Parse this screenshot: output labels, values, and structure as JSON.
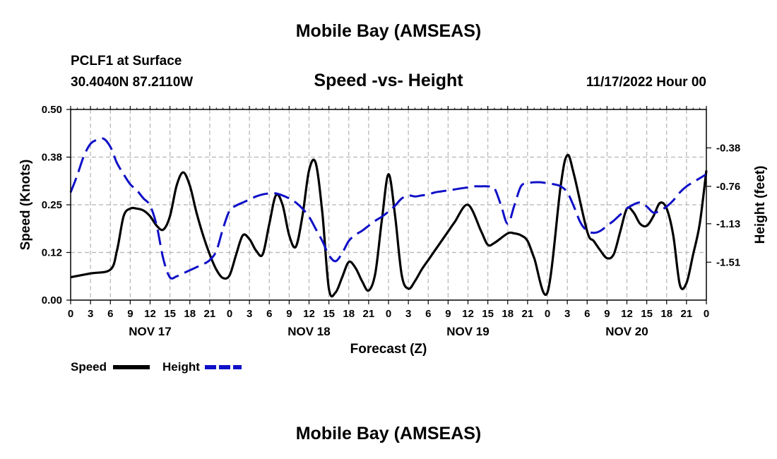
{
  "page": {
    "title": "Mobile Bay (AMSEAS)",
    "station": "PCLF1 at Surface",
    "coords": "30.4040N  87.2110W",
    "chart_title": "Speed -vs- Height",
    "run_time": "11/17/2022 Hour 00",
    "footer_title": "Mobile Bay (AMSEAS)"
  },
  "colors": {
    "speed": "#000000",
    "height": "#1010c8",
    "grid": "#b4b4b4"
  },
  "chart_data": {
    "type": "line",
    "title": "Speed -vs- Height",
    "xlabel": "Forecast (Z)",
    "ylabel": "Speed (Knots)",
    "y2label": "Height (feet)",
    "x_unit": "forecast hour",
    "xlim": [
      0,
      96
    ],
    "x_tick_step": 3,
    "x_tick_labels": [
      "0",
      "3",
      "6",
      "9",
      "12",
      "15",
      "18",
      "21",
      "0",
      "3",
      "6",
      "9",
      "12",
      "15",
      "18",
      "21",
      "0",
      "3",
      "6",
      "9",
      "12",
      "15",
      "18",
      "21",
      "0",
      "3",
      "6",
      "9",
      "12",
      "15",
      "18",
      "21",
      "0"
    ],
    "day_labels": [
      {
        "hour": 12,
        "label": "NOV 17"
      },
      {
        "hour": 36,
        "label": "NOV 18"
      },
      {
        "hour": 60,
        "label": "NOV 19"
      },
      {
        "hour": 84,
        "label": "NOV 20"
      }
    ],
    "ylim": [
      0,
      0.5
    ],
    "y_ticks": [
      0,
      0.125,
      0.25,
      0.375,
      0.5
    ],
    "y_tick_labels": [
      "0.00",
      "0.12",
      "0.25",
      "0.38",
      "0.50"
    ],
    "y2lim": [
      -1.885,
      0.0
    ],
    "y2_ticks": [
      -1.51,
      -1.13,
      -0.76,
      -0.38
    ],
    "y2_tick_labels": [
      "-1.51",
      "-1.13",
      "-0.76",
      "-0.38"
    ],
    "grid": true,
    "legend": {
      "placement": "below-left",
      "entries": [
        "Speed",
        "Height"
      ]
    },
    "series": [
      {
        "name": "Speed",
        "axis": "left",
        "style": "solid",
        "x": [
          0,
          3,
          6,
          7,
          8,
          9,
          10,
          11,
          12,
          13,
          14,
          15,
          16,
          17,
          18,
          19,
          20,
          21,
          22,
          23,
          24,
          25,
          26,
          27,
          28,
          29,
          30,
          31,
          32,
          33,
          34,
          35,
          36,
          37,
          38,
          39,
          40,
          41,
          42,
          43,
          44,
          45,
          46,
          47,
          48,
          49,
          50,
          51,
          52,
          53,
          54,
          55,
          56,
          57,
          58,
          60,
          62,
          63,
          64,
          66,
          67,
          68,
          69,
          70,
          72,
          74,
          75,
          76,
          78,
          79,
          80,
          81,
          82,
          83,
          84,
          85,
          86,
          87,
          88,
          89,
          90,
          91,
          92,
          93,
          94,
          95,
          96
        ],
        "values": [
          0.06,
          0.07,
          0.08,
          0.13,
          0.22,
          0.24,
          0.24,
          0.235,
          0.22,
          0.195,
          0.185,
          0.22,
          0.3,
          0.335,
          0.3,
          0.23,
          0.17,
          0.12,
          0.08,
          0.058,
          0.065,
          0.12,
          0.17,
          0.16,
          0.13,
          0.12,
          0.2,
          0.275,
          0.25,
          0.17,
          0.14,
          0.22,
          0.34,
          0.36,
          0.23,
          0.03,
          0.02,
          0.06,
          0.1,
          0.085,
          0.05,
          0.025,
          0.07,
          0.21,
          0.33,
          0.22,
          0.065,
          0.03,
          0.05,
          0.08,
          0.105,
          0.13,
          0.155,
          0.18,
          0.205,
          0.25,
          0.18,
          0.145,
          0.15,
          0.175,
          0.175,
          0.17,
          0.155,
          0.11,
          0.02,
          0.3,
          0.38,
          0.33,
          0.18,
          0.155,
          0.13,
          0.11,
          0.12,
          0.18,
          0.24,
          0.23,
          0.2,
          0.195,
          0.22,
          0.255,
          0.24,
          0.17,
          0.04,
          0.045,
          0.12,
          0.2,
          0.34
        ]
      },
      {
        "name": "Height",
        "axis": "right",
        "style": "dashed",
        "x": [
          0,
          1,
          2,
          3,
          4,
          5,
          6,
          7,
          8,
          9,
          10,
          11,
          12,
          13,
          14,
          15,
          16,
          17,
          18,
          19,
          20,
          21,
          22,
          23,
          24,
          25,
          26,
          27,
          28,
          29,
          30,
          31,
          32,
          33,
          34,
          35,
          36,
          37,
          38,
          39,
          40,
          41,
          42,
          43,
          44,
          45,
          46,
          47,
          48,
          49,
          50,
          51,
          52,
          53,
          54,
          55,
          56,
          57,
          58,
          59,
          60,
          61,
          62,
          63,
          64,
          65,
          66,
          67,
          68,
          69,
          70,
          71,
          72,
          73,
          74,
          75,
          76,
          77,
          78,
          79,
          80,
          81,
          82,
          83,
          84,
          85,
          86,
          87,
          88,
          89,
          90,
          91,
          92,
          93,
          94,
          95,
          96
        ],
        "values": [
          -0.82,
          -0.65,
          -0.46,
          -0.34,
          -0.3,
          -0.29,
          -0.37,
          -0.53,
          -0.64,
          -0.74,
          -0.8,
          -0.88,
          -0.95,
          -1.15,
          -1.48,
          -1.66,
          -1.65,
          -1.62,
          -1.59,
          -1.56,
          -1.53,
          -1.49,
          -1.4,
          -1.18,
          -1.0,
          -0.95,
          -0.92,
          -0.89,
          -0.86,
          -0.84,
          -0.83,
          -0.83,
          -0.85,
          -0.88,
          -0.92,
          -0.98,
          -1.06,
          -1.18,
          -1.3,
          -1.44,
          -1.5,
          -1.42,
          -1.3,
          -1.24,
          -1.2,
          -1.15,
          -1.1,
          -1.06,
          -1.01,
          -0.95,
          -0.88,
          -0.85,
          -0.86,
          -0.85,
          -0.84,
          -0.82,
          -0.81,
          -0.8,
          -0.79,
          -0.78,
          -0.77,
          -0.76,
          -0.76,
          -0.76,
          -0.78,
          -0.95,
          -1.13,
          -0.95,
          -0.76,
          -0.73,
          -0.72,
          -0.72,
          -0.73,
          -0.74,
          -0.76,
          -0.82,
          -0.96,
          -1.12,
          -1.2,
          -1.22,
          -1.2,
          -1.15,
          -1.1,
          -1.04,
          -0.98,
          -0.94,
          -0.92,
          -0.96,
          -1.02,
          -1.0,
          -0.96,
          -0.9,
          -0.82,
          -0.76,
          -0.72,
          -0.68,
          -0.64
        ]
      }
    ]
  }
}
